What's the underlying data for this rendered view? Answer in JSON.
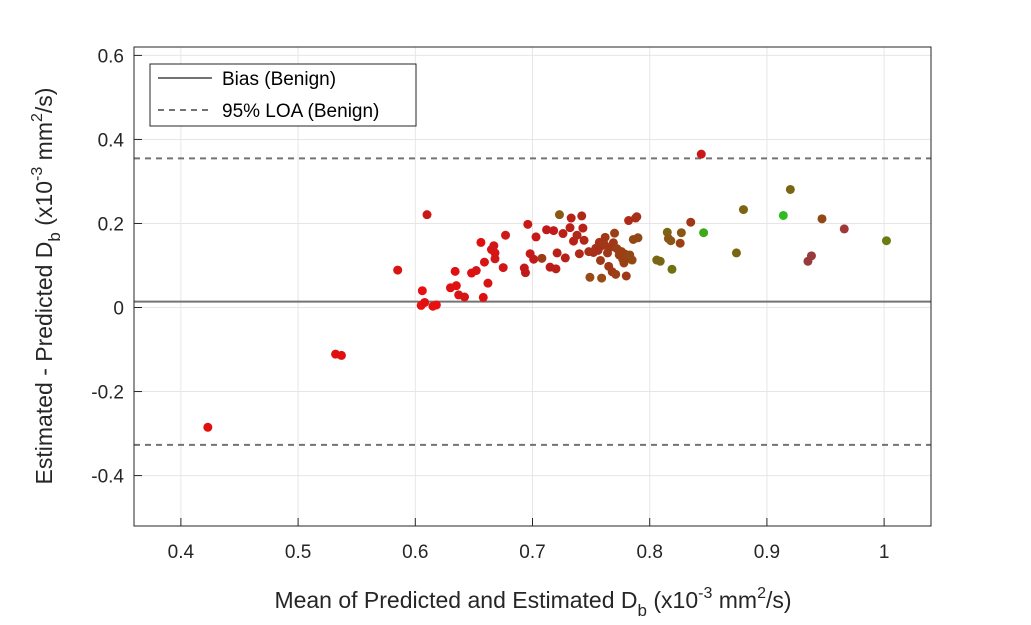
{
  "chart_data": {
    "type": "scatter",
    "xlabel": {
      "main": "Mean of Predicted and Estimated D",
      "sub": "b",
      "unit_prefix": " (x10",
      "exp": "-3",
      "unit_mid": " mm",
      "exp2": "2",
      "unit_end": "/s)"
    },
    "ylabel": {
      "main": "Estimated - Predicted D",
      "sub": "b",
      "unit_prefix": "  (x10",
      "exp": "-3",
      "unit_mid": " mm",
      "exp2": "2",
      "unit_end": "/s)"
    },
    "xlim": [
      0.36,
      1.04
    ],
    "ylim": [
      -0.52,
      0.62
    ],
    "xticks": [
      0.4,
      0.5,
      0.6,
      0.7,
      0.8,
      0.9,
      1.0
    ],
    "xtick_labels": [
      "0.4",
      "0.5",
      "0.6",
      "0.7",
      "0.8",
      "0.9",
      "1"
    ],
    "yticks": [
      -0.4,
      -0.2,
      0,
      0.2,
      0.4,
      0.6
    ],
    "ytick_labels": [
      "-0.4",
      "-0.2",
      "0",
      "0.2",
      "0.4",
      "0.6"
    ],
    "grid": true,
    "legend_position": "top-left",
    "legend": [
      {
        "label": "Bias (Benign)",
        "style": "solid"
      },
      {
        "label": "95% LOA (Benign)",
        "style": "dashed"
      }
    ],
    "bias": 0.014,
    "loa_upper": 0.355,
    "loa_lower": -0.327,
    "line_color": "#737373",
    "points": [
      {
        "x": 0.423,
        "y": -0.285,
        "color": "#e01010"
      },
      {
        "x": 0.532,
        "y": -0.111,
        "color": "#e01010"
      },
      {
        "x": 0.537,
        "y": -0.114,
        "color": "#e01010"
      },
      {
        "x": 0.585,
        "y": 0.089,
        "color": "#d81515"
      },
      {
        "x": 0.605,
        "y": 0.005,
        "color": "#e81010"
      },
      {
        "x": 0.606,
        "y": 0.04,
        "color": "#e81010"
      },
      {
        "x": 0.608,
        "y": 0.012,
        "color": "#e01010"
      },
      {
        "x": 0.61,
        "y": 0.221,
        "color": "#c81818"
      },
      {
        "x": 0.615,
        "y": 0.003,
        "color": "#e81010"
      },
      {
        "x": 0.618,
        "y": 0.006,
        "color": "#e81010"
      },
      {
        "x": 0.63,
        "y": 0.047,
        "color": "#e01010"
      },
      {
        "x": 0.634,
        "y": 0.086,
        "color": "#e01010"
      },
      {
        "x": 0.635,
        "y": 0.052,
        "color": "#e01010"
      },
      {
        "x": 0.637,
        "y": 0.03,
        "color": "#d81515"
      },
      {
        "x": 0.642,
        "y": 0.025,
        "color": "#d81515"
      },
      {
        "x": 0.648,
        "y": 0.082,
        "color": "#e01010"
      },
      {
        "x": 0.652,
        "y": 0.088,
        "color": "#d81515"
      },
      {
        "x": 0.656,
        "y": 0.155,
        "color": "#e01010"
      },
      {
        "x": 0.658,
        "y": 0.024,
        "color": "#e01010"
      },
      {
        "x": 0.659,
        "y": 0.108,
        "color": "#d81515"
      },
      {
        "x": 0.662,
        "y": 0.058,
        "color": "#d81515"
      },
      {
        "x": 0.665,
        "y": 0.138,
        "color": "#d81515"
      },
      {
        "x": 0.667,
        "y": 0.147,
        "color": "#d01818"
      },
      {
        "x": 0.668,
        "y": 0.116,
        "color": "#d01818"
      },
      {
        "x": 0.668,
        "y": 0.13,
        "color": "#d81515"
      },
      {
        "x": 0.675,
        "y": 0.095,
        "color": "#d01818"
      },
      {
        "x": 0.677,
        "y": 0.172,
        "color": "#d01818"
      },
      {
        "x": 0.693,
        "y": 0.094,
        "color": "#c81818"
      },
      {
        "x": 0.694,
        "y": 0.083,
        "color": "#c01a1a"
      },
      {
        "x": 0.696,
        "y": 0.198,
        "color": "#c81818"
      },
      {
        "x": 0.698,
        "y": 0.128,
        "color": "#c81818"
      },
      {
        "x": 0.701,
        "y": 0.115,
        "color": "#c01a1a"
      },
      {
        "x": 0.703,
        "y": 0.168,
        "color": "#c81818"
      },
      {
        "x": 0.708,
        "y": 0.117,
        "color": "#a03a14"
      },
      {
        "x": 0.712,
        "y": 0.185,
        "color": "#c01a1a"
      },
      {
        "x": 0.715,
        "y": 0.096,
        "color": "#c01a1a"
      },
      {
        "x": 0.718,
        "y": 0.183,
        "color": "#c01a1a"
      },
      {
        "x": 0.72,
        "y": 0.092,
        "color": "#b82018"
      },
      {
        "x": 0.721,
        "y": 0.13,
        "color": "#b82018"
      },
      {
        "x": 0.723,
        "y": 0.221,
        "color": "#8a5a14"
      },
      {
        "x": 0.726,
        "y": 0.176,
        "color": "#b82018"
      },
      {
        "x": 0.728,
        "y": 0.118,
        "color": "#b82018"
      },
      {
        "x": 0.732,
        "y": 0.19,
        "color": "#b82018"
      },
      {
        "x": 0.733,
        "y": 0.213,
        "color": "#b82018"
      },
      {
        "x": 0.735,
        "y": 0.158,
        "color": "#b82018"
      },
      {
        "x": 0.738,
        "y": 0.172,
        "color": "#b02818"
      },
      {
        "x": 0.74,
        "y": 0.128,
        "color": "#b02818"
      },
      {
        "x": 0.742,
        "y": 0.218,
        "color": "#b02818"
      },
      {
        "x": 0.743,
        "y": 0.189,
        "color": "#b82018"
      },
      {
        "x": 0.744,
        "y": 0.16,
        "color": "#b02818"
      },
      {
        "x": 0.748,
        "y": 0.133,
        "color": "#a83018"
      },
      {
        "x": 0.749,
        "y": 0.072,
        "color": "#9a4a14"
      },
      {
        "x": 0.752,
        "y": 0.131,
        "color": "#a83018"
      },
      {
        "x": 0.754,
        "y": 0.141,
        "color": "#a83018"
      },
      {
        "x": 0.756,
        "y": 0.136,
        "color": "#a83018"
      },
      {
        "x": 0.757,
        "y": 0.155,
        "color": "#a83018"
      },
      {
        "x": 0.758,
        "y": 0.112,
        "color": "#a03818"
      },
      {
        "x": 0.759,
        "y": 0.07,
        "color": "#9a4a14"
      },
      {
        "x": 0.76,
        "y": 0.148,
        "color": "#a83018"
      },
      {
        "x": 0.761,
        "y": 0.152,
        "color": "#a03818"
      },
      {
        "x": 0.762,
        "y": 0.167,
        "color": "#a03818"
      },
      {
        "x": 0.764,
        "y": 0.13,
        "color": "#a03818"
      },
      {
        "x": 0.765,
        "y": 0.098,
        "color": "#a03818"
      },
      {
        "x": 0.766,
        "y": 0.143,
        "color": "#a03818"
      },
      {
        "x": 0.768,
        "y": 0.085,
        "color": "#a03818"
      },
      {
        "x": 0.769,
        "y": 0.154,
        "color": "#a03818"
      },
      {
        "x": 0.77,
        "y": 0.177,
        "color": "#9a4014"
      },
      {
        "x": 0.771,
        "y": 0.079,
        "color": "#9a4014"
      },
      {
        "x": 0.772,
        "y": 0.14,
        "color": "#9a4014"
      },
      {
        "x": 0.774,
        "y": 0.125,
        "color": "#9a4014"
      },
      {
        "x": 0.776,
        "y": 0.133,
        "color": "#9a4014"
      },
      {
        "x": 0.777,
        "y": 0.115,
        "color": "#9a4014"
      },
      {
        "x": 0.778,
        "y": 0.106,
        "color": "#9a4014"
      },
      {
        "x": 0.779,
        "y": 0.127,
        "color": "#9a4014"
      },
      {
        "x": 0.78,
        "y": 0.075,
        "color": "#a03818"
      },
      {
        "x": 0.781,
        "y": 0.117,
        "color": "#9a4014"
      },
      {
        "x": 0.782,
        "y": 0.207,
        "color": "#b02818"
      },
      {
        "x": 0.783,
        "y": 0.125,
        "color": "#924814"
      },
      {
        "x": 0.785,
        "y": 0.113,
        "color": "#924814"
      },
      {
        "x": 0.786,
        "y": 0.162,
        "color": "#924814"
      },
      {
        "x": 0.788,
        "y": 0.213,
        "color": "#b02818"
      },
      {
        "x": 0.789,
        "y": 0.216,
        "color": "#a83018"
      },
      {
        "x": 0.79,
        "y": 0.166,
        "color": "#924814"
      },
      {
        "x": 0.806,
        "y": 0.113,
        "color": "#7a6612"
      },
      {
        "x": 0.809,
        "y": 0.11,
        "color": "#7a6612"
      },
      {
        "x": 0.815,
        "y": 0.179,
        "color": "#7a6612"
      },
      {
        "x": 0.816,
        "y": 0.164,
        "color": "#8a5614"
      },
      {
        "x": 0.818,
        "y": 0.159,
        "color": "#8a5614"
      },
      {
        "x": 0.819,
        "y": 0.091,
        "color": "#6e7210"
      },
      {
        "x": 0.826,
        "y": 0.153,
        "color": "#9a4014"
      },
      {
        "x": 0.827,
        "y": 0.178,
        "color": "#8a5614"
      },
      {
        "x": 0.835,
        "y": 0.203,
        "color": "#a03818"
      },
      {
        "x": 0.844,
        "y": 0.365,
        "color": "#c81818"
      },
      {
        "x": 0.846,
        "y": 0.178,
        "color": "#3eaa1a"
      },
      {
        "x": 0.874,
        "y": 0.13,
        "color": "#7a6612"
      },
      {
        "x": 0.88,
        "y": 0.233,
        "color": "#7a6612"
      },
      {
        "x": 0.914,
        "y": 0.219,
        "color": "#30bb20"
      },
      {
        "x": 0.92,
        "y": 0.281,
        "color": "#7a6612"
      },
      {
        "x": 0.935,
        "y": 0.11,
        "color": "#9a3a3a"
      },
      {
        "x": 0.938,
        "y": 0.123,
        "color": "#9a3a3a"
      },
      {
        "x": 0.947,
        "y": 0.211,
        "color": "#924814"
      },
      {
        "x": 0.966,
        "y": 0.187,
        "color": "#a03838"
      },
      {
        "x": 1.002,
        "y": 0.159,
        "color": "#6e7a12"
      }
    ]
  }
}
